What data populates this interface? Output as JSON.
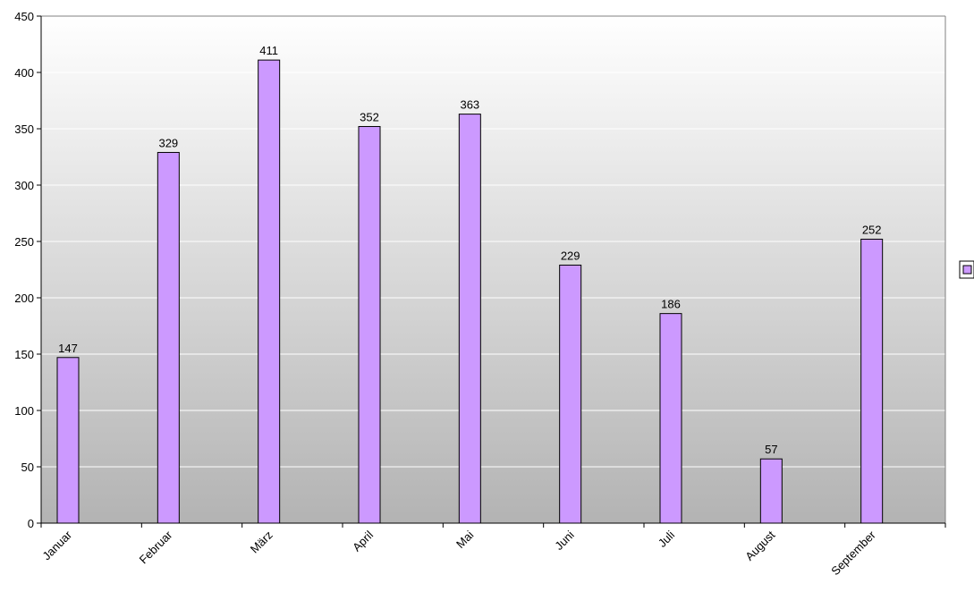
{
  "chart_data": {
    "type": "bar",
    "categories": [
      "Januar",
      "Februar",
      "März",
      "April",
      "Mai",
      "Juni",
      "Juli",
      "August",
      "September"
    ],
    "series": [
      {
        "values": [
          147,
          329,
          411,
          352,
          363,
          229,
          186,
          57,
          252
        ]
      }
    ],
    "ylim": [
      0,
      450
    ],
    "y_ticks": [
      "0",
      "50",
      "100",
      "150",
      "200",
      "250",
      "300",
      "350",
      "400",
      "450"
    ],
    "gridlines": true,
    "data_labels": true,
    "legend_placement": "right",
    "colors": {
      "bar_fill": "#cc99ff",
      "bar_stroke": "#000000",
      "plot_bg_top": "#ffffff",
      "plot_bg_bottom": "#b3b3b3",
      "gridline": "#ffffff"
    }
  }
}
